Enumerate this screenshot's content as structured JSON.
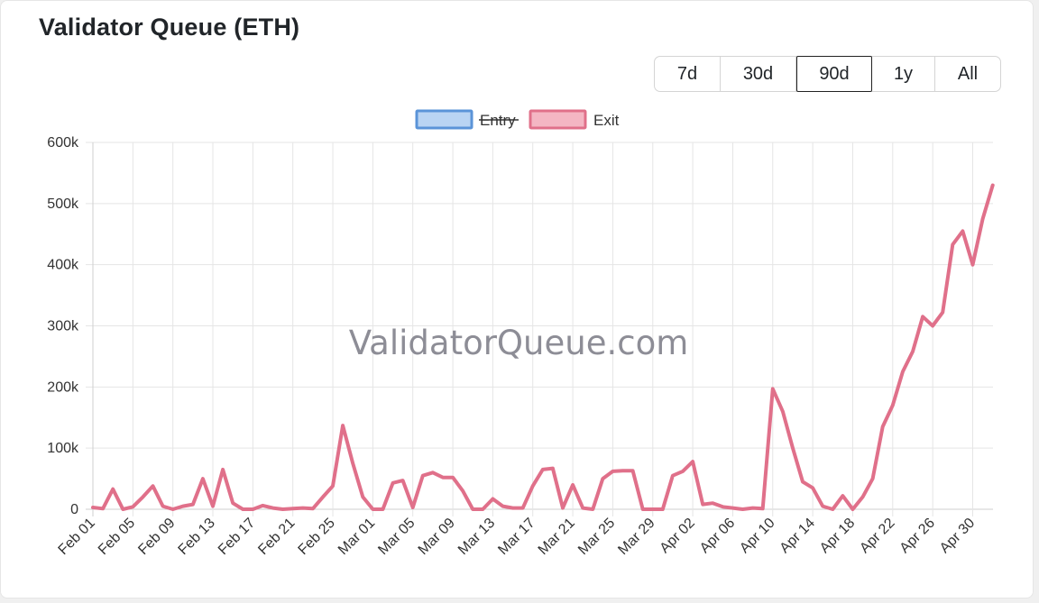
{
  "title": "Validator Queue (ETH)",
  "range_buttons": [
    {
      "label": "7d"
    },
    {
      "label": "30d"
    },
    {
      "label": "90d",
      "active": true
    },
    {
      "label": "1y"
    },
    {
      "label": "All"
    }
  ],
  "watermark": "ValidatorQueue.com",
  "colors": {
    "entry_fill": "#b9d4f3",
    "entry_stroke": "#5b94d8",
    "exit_fill": "#f4b6c3",
    "exit_stroke": "#e0708a"
  },
  "chart_data": {
    "type": "line",
    "title": "",
    "xlabel": "",
    "ylabel": "",
    "ylim": [
      0,
      600000
    ],
    "y_ticks": [
      "0",
      "100k",
      "200k",
      "300k",
      "400k",
      "500k",
      "600k"
    ],
    "x_tick_labels": [
      "Feb 01",
      "Feb 05",
      "Feb 09",
      "Feb 13",
      "Feb 17",
      "Feb 21",
      "Feb 25",
      "Mar 01",
      "Mar 05",
      "Mar 09",
      "Mar 13",
      "Mar 17",
      "Mar 21",
      "Mar 25",
      "Mar 29",
      "Apr 02",
      "Apr 06",
      "Apr 10",
      "Apr 14",
      "Apr 18",
      "Apr 22",
      "Apr 26",
      "Apr 30"
    ],
    "grid": true,
    "legend_position": "top",
    "legend": [
      {
        "name": "Entry",
        "hidden": true
      },
      {
        "name": "Exit",
        "hidden": false
      }
    ],
    "series": [
      {
        "name": "Exit",
        "values": [
          3000,
          1000,
          33000,
          0,
          4000,
          20000,
          38000,
          5000,
          0,
          5000,
          8000,
          50000,
          5000,
          65000,
          10000,
          0,
          0,
          6000,
          2000,
          0,
          1000,
          2000,
          1000,
          20000,
          38000,
          137000,
          75000,
          20000,
          0,
          0,
          43000,
          47000,
          3000,
          55000,
          60000,
          52000,
          52000,
          30000,
          0,
          0,
          17000,
          5000,
          2000,
          2000,
          38000,
          65000,
          67000,
          2000,
          40000,
          2000,
          0,
          50000,
          62000,
          63000,
          63000,
          0,
          0,
          0,
          55000,
          62000,
          78000,
          8000,
          10000,
          4000,
          2000,
          0,
          2000,
          1000,
          197000,
          160000,
          100000,
          45000,
          35000,
          5000,
          0,
          22000,
          0,
          20000,
          50000,
          135000,
          170000,
          225000,
          258000,
          315000,
          300000,
          322000,
          433000,
          455000,
          400000,
          475000,
          530000
        ]
      }
    ]
  }
}
